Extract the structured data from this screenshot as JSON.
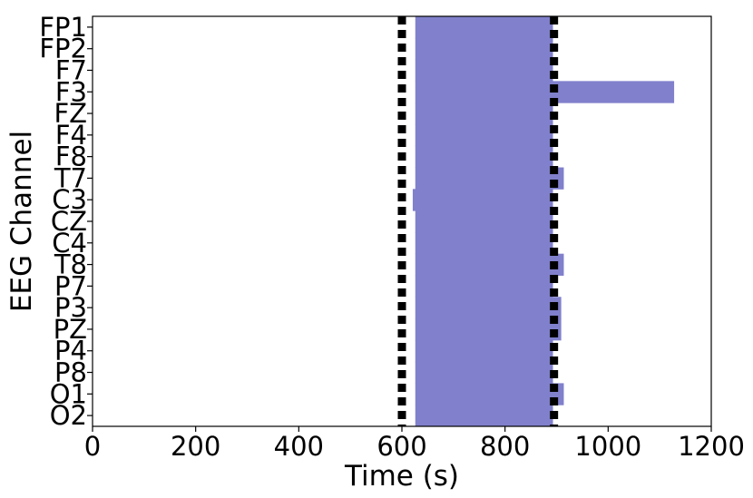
{
  "chart_data": {
    "type": "bar",
    "orientation": "horizontal",
    "xlabel": "Time (s)",
    "ylabel": "EEG Channel",
    "xlim": [
      0,
      1200
    ],
    "xticks": [
      "0",
      "200",
      "400",
      "600",
      "800",
      "1000",
      "1200"
    ],
    "xtick_values": [
      0,
      200,
      400,
      600,
      800,
      1000,
      1200
    ],
    "categories": [
      "FP1",
      "FP2",
      "F7",
      "F3",
      "FZ",
      "F4",
      "F8",
      "T7",
      "C3",
      "CZ",
      "C4",
      "T8",
      "P7",
      "P3",
      "PZ",
      "P4",
      "P8",
      "O1",
      "O2"
    ],
    "intervals": [
      {
        "channel": "FP1",
        "start": 626,
        "end": 893
      },
      {
        "channel": "FP2",
        "start": 626,
        "end": 893
      },
      {
        "channel": "F7",
        "start": 626,
        "end": 893
      },
      {
        "channel": "F3",
        "start": 626,
        "end": 1128
      },
      {
        "channel": "FZ",
        "start": 626,
        "end": 893
      },
      {
        "channel": "F4",
        "start": 626,
        "end": 893
      },
      {
        "channel": "F8",
        "start": 626,
        "end": 893
      },
      {
        "channel": "T7",
        "start": 626,
        "end": 914
      },
      {
        "channel": "C3",
        "start": 621,
        "end": 893
      },
      {
        "channel": "CZ",
        "start": 626,
        "end": 893
      },
      {
        "channel": "C4",
        "start": 626,
        "end": 893
      },
      {
        "channel": "T8",
        "start": 626,
        "end": 914
      },
      {
        "channel": "P7",
        "start": 626,
        "end": 893
      },
      {
        "channel": "P3",
        "start": 626,
        "end": 909
      },
      {
        "channel": "PZ",
        "start": 626,
        "end": 909
      },
      {
        "channel": "P4",
        "start": 626,
        "end": 893
      },
      {
        "channel": "P8",
        "start": 626,
        "end": 893
      },
      {
        "channel": "O1",
        "start": 626,
        "end": 914
      },
      {
        "channel": "O2",
        "start": 626,
        "end": 893
      }
    ],
    "reference_lines": [
      600,
      895
    ],
    "bar_color": "#8080cc",
    "reference_line_color": "#000000",
    "grid": false
  }
}
